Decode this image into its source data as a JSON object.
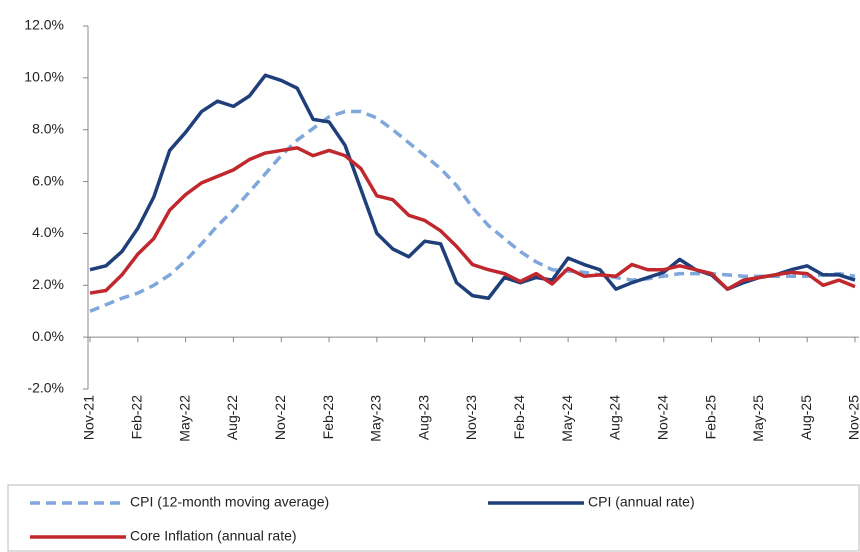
{
  "chart_data": {
    "type": "line",
    "categories": [
      "Nov-21",
      null,
      null,
      "Feb-22",
      null,
      null,
      "May-22",
      null,
      null,
      "Aug-22",
      null,
      null,
      "Nov-22",
      null,
      null,
      "Feb-23",
      null,
      null,
      "May-23",
      null,
      null,
      "Aug-23",
      null,
      null,
      "Nov-23",
      null,
      null,
      "Feb-24",
      null,
      null,
      "May-24",
      null,
      null,
      "Aug-24",
      null,
      null,
      "Nov-24",
      null,
      null,
      "Feb-25",
      null,
      null,
      "May-25",
      null,
      null,
      "Aug-25",
      null,
      null,
      "Nov-25"
    ],
    "series": [
      {
        "name": "CPI (12-month moving average)",
        "color": "#7fa7dc",
        "dashed": true,
        "values": [
          1.0,
          1.25,
          1.5,
          1.7,
          2.0,
          2.4,
          2.95,
          3.6,
          4.3,
          4.9,
          5.6,
          6.3,
          7.0,
          7.6,
          8.05,
          8.5,
          8.7,
          8.7,
          8.45,
          8.0,
          7.5,
          7.0,
          6.5,
          5.85,
          5.0,
          4.3,
          3.8,
          3.3,
          2.9,
          2.6,
          2.55,
          2.5,
          2.4,
          2.3,
          2.2,
          2.25,
          2.35,
          2.45,
          2.45,
          2.45,
          2.4,
          2.35,
          2.35,
          2.35,
          2.35,
          2.35,
          2.4,
          2.45,
          2.35
        ]
      },
      {
        "name": "CPI (annual rate)",
        "color": "#1f3f7a",
        "dashed": false,
        "values": [
          2.6,
          2.75,
          3.3,
          4.2,
          5.4,
          7.2,
          7.9,
          8.7,
          9.1,
          8.9,
          9.3,
          10.1,
          9.9,
          9.6,
          8.4,
          8.3,
          7.4,
          5.7,
          4.0,
          3.4,
          3.1,
          3.7,
          3.6,
          2.1,
          1.6,
          1.5,
          2.3,
          2.1,
          2.3,
          2.2,
          3.05,
          2.8,
          2.6,
          1.85,
          2.1,
          2.3,
          2.5,
          3.0,
          2.6,
          2.4,
          1.85,
          2.1,
          2.3,
          2.4,
          2.6,
          2.75,
          2.4,
          2.4,
          2.2
        ]
      },
      {
        "name": "Core Inflation (annual rate)",
        "color": "#c0282d",
        "dashed": false,
        "values": [
          1.7,
          1.8,
          2.4,
          3.2,
          3.8,
          4.9,
          5.5,
          5.95,
          6.2,
          6.45,
          6.85,
          7.1,
          7.2,
          7.3,
          7.0,
          7.2,
          7.0,
          6.5,
          5.45,
          5.3,
          4.7,
          4.5,
          4.1,
          3.5,
          2.8,
          2.6,
          2.45,
          2.15,
          2.45,
          2.05,
          2.65,
          2.35,
          2.4,
          2.35,
          2.8,
          2.6,
          2.6,
          2.75,
          2.6,
          2.45,
          1.85,
          2.2,
          2.3,
          2.4,
          2.5,
          2.45,
          2.0,
          2.2,
          1.95
        ]
      }
    ],
    "ylim": [
      -2,
      12
    ],
    "yticks": [
      {
        "value": -2,
        "label": "-2.0%"
      },
      {
        "value": 0,
        "label": "0.0%"
      },
      {
        "value": 2,
        "label": "2.0%"
      },
      {
        "value": 4,
        "label": "4.0%"
      },
      {
        "value": 6,
        "label": "6.0%"
      },
      {
        "value": 8,
        "label": "8.0%"
      },
      {
        "value": 10,
        "label": "10.0%"
      },
      {
        "value": 12,
        "label": "12.0%"
      }
    ],
    "grid": false,
    "legend": "bottom"
  }
}
